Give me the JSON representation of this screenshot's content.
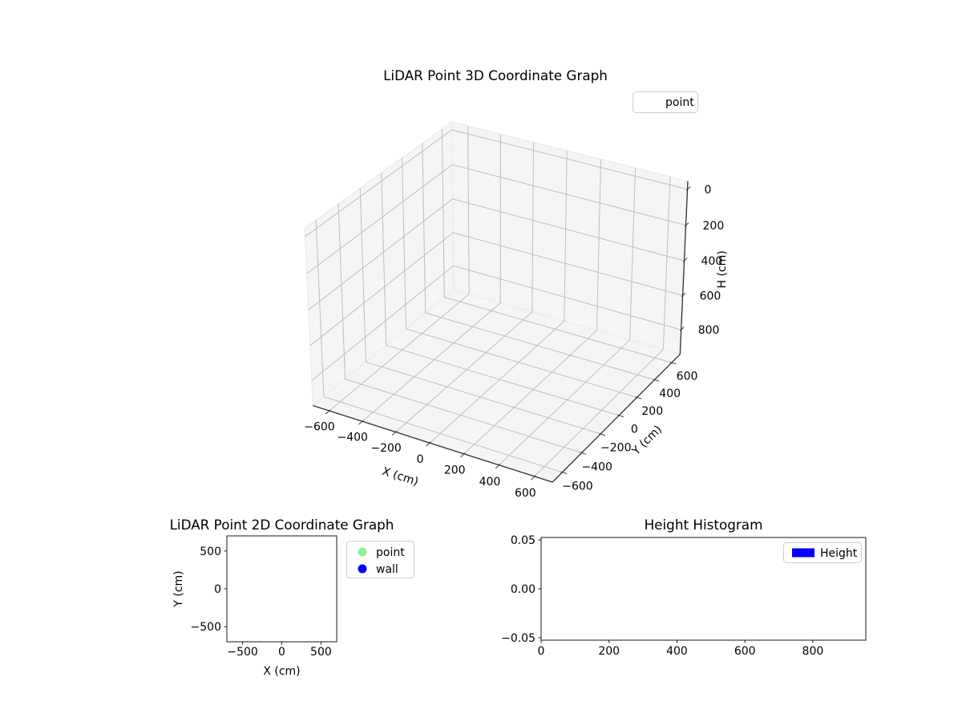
{
  "colors": {
    "background": "#ffffff",
    "pane": "#f5f5f6",
    "pane_edge": "#e9e9eb",
    "grid3d": "#bdbdc0",
    "axis3d": "#2f2f2f",
    "spine": "#1a1a1a",
    "text": "#000000",
    "legend_border": "#cccccc",
    "point_green": "#90ee90",
    "wall_blue": "#0000ff",
    "height_blue": "#0000ff"
  },
  "chart_data": [
    {
      "type": "scatter3d",
      "title": "LiDAR Point 3D Coordinate Graph",
      "xlabel": "X (cm)",
      "ylabel": "Y (cm)",
      "zlabel": "H (cm)",
      "xlim": [
        -700,
        700
      ],
      "ylim": [
        -700,
        700
      ],
      "zlim": [
        -45,
        945
      ],
      "z_axis_inverted": true,
      "xticks": [
        -600,
        -400,
        -200,
        0,
        200,
        400,
        600
      ],
      "yticks": [
        -600,
        -400,
        -200,
        0,
        200,
        400,
        600
      ],
      "zticks": [
        0,
        200,
        400,
        600,
        800
      ],
      "grid": true,
      "view": {
        "elev": 30,
        "azim": -60,
        "projection": "persp"
      },
      "legend": {
        "position": "upper right",
        "items": [
          {
            "label": "point",
            "marker": "circle",
            "color": "#ffffff",
            "marker_visible": false
          }
        ]
      },
      "series": [
        {
          "name": "point",
          "points": []
        }
      ]
    },
    {
      "type": "scatter",
      "title": "LiDAR Point 2D Coordinate Graph",
      "xlabel": "X (cm)",
      "ylabel": "Y (cm)",
      "xlim": [
        -700,
        700
      ],
      "ylim": [
        -700,
        700
      ],
      "xticks": [
        -500,
        0,
        500
      ],
      "yticks": [
        -500,
        0,
        500
      ],
      "grid": false,
      "legend": {
        "position": "upper right outside",
        "items": [
          {
            "label": "point",
            "marker": "circle",
            "color": "#90ee90"
          },
          {
            "label": "wall",
            "marker": "circle",
            "color": "#0000ff"
          }
        ]
      },
      "series": [
        {
          "name": "point",
          "color": "#90ee90",
          "points": []
        },
        {
          "name": "wall",
          "color": "#0000ff",
          "points": []
        }
      ]
    },
    {
      "type": "bar",
      "title": "Height Histogram",
      "xlabel": "",
      "ylabel": "",
      "xlim": [
        0,
        956
      ],
      "ylim": [
        -0.0525,
        0.0525
      ],
      "xticks": [
        0,
        200,
        400,
        600,
        800
      ],
      "yticks": [
        -0.05,
        0,
        0.05
      ],
      "grid": false,
      "legend": {
        "position": "upper right",
        "items": [
          {
            "label": "Height",
            "marker": "rect",
            "color": "#0000ff"
          }
        ]
      },
      "categories": [],
      "values": []
    }
  ]
}
